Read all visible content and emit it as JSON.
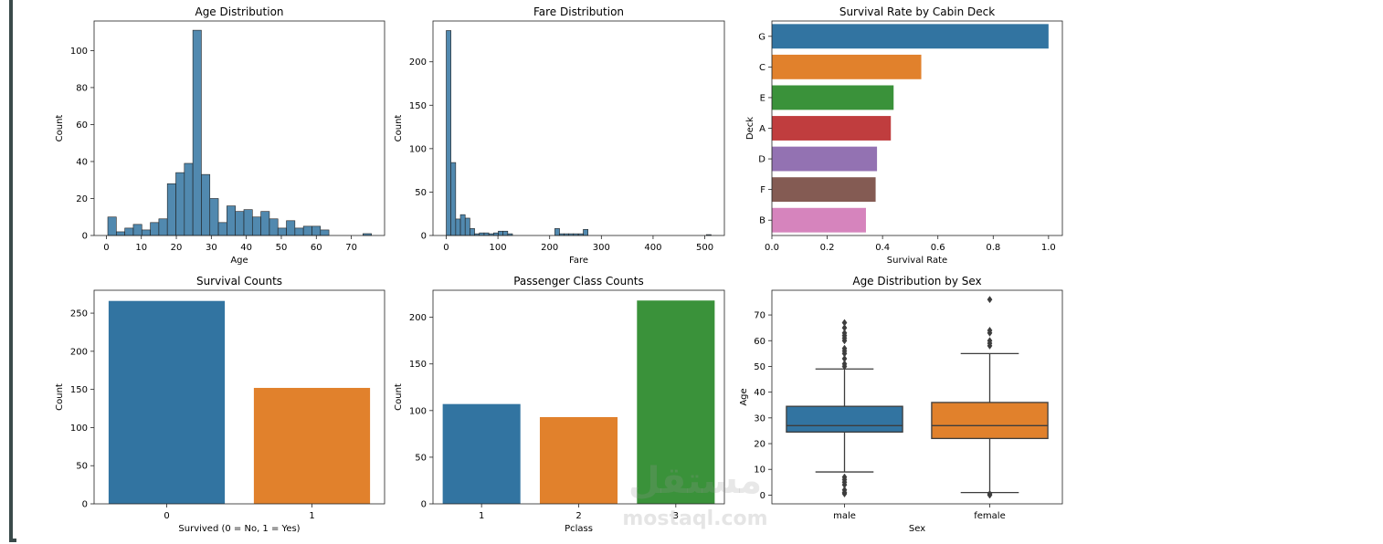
{
  "figure": {
    "watermark": {
      "arabic": "مستقل",
      "latin": "mostaql.com"
    }
  },
  "chart_data": [
    {
      "id": "age",
      "type": "bar",
      "subtype": "histogram",
      "title": "Age Distribution",
      "xlabel": "Age",
      "ylabel": "Count",
      "xlim": [
        -3.5,
        79.5
      ],
      "ylim": [
        0,
        116
      ],
      "xticks": [
        0,
        10,
        20,
        30,
        40,
        50,
        60,
        70
      ],
      "yticks": [
        0,
        20,
        40,
        60,
        80,
        100
      ],
      "bin_start": 0.42,
      "bin_width": 2.43,
      "values": [
        10,
        2,
        4,
        6,
        3,
        7,
        9,
        28,
        34,
        39,
        111,
        33,
        20,
        7,
        16,
        13,
        14,
        10,
        13,
        9,
        4,
        8,
        4,
        5,
        5,
        3,
        0,
        0,
        0,
        0,
        1
      ],
      "color": "#3274a1"
    },
    {
      "id": "fare",
      "type": "bar",
      "subtype": "histogram",
      "title": "Fare Distribution",
      "xlabel": "Fare",
      "ylabel": "Count",
      "xlim": [
        -25.6,
        537.9
      ],
      "ylim": [
        0,
        247
      ],
      "xticks": [
        0,
        100,
        200,
        300,
        400,
        500
      ],
      "yticks": [
        0,
        50,
        100,
        150,
        200
      ],
      "bin_start": 0,
      "bin_width": 9.15,
      "values": [
        236,
        84,
        19,
        24,
        20,
        8,
        2,
        3,
        3,
        2,
        3,
        5,
        5,
        2,
        0,
        0,
        0,
        0,
        0,
        0,
        0,
        0,
        0,
        0,
        0,
        0,
        0,
        0,
        0,
        0,
        0,
        0,
        0,
        0,
        0,
        0,
        0,
        0,
        0,
        0,
        0,
        0,
        0,
        0,
        0,
        0,
        0,
        0,
        0,
        0,
        0,
        0,
        0,
        0,
        0,
        0
      ],
      "extra_bars": [
        {
          "x": 210,
          "value": 8
        },
        {
          "x": 219,
          "value": 2
        },
        {
          "x": 228,
          "value": 2
        },
        {
          "x": 237,
          "value": 2
        },
        {
          "x": 246,
          "value": 2
        },
        {
          "x": 256,
          "value": 2
        },
        {
          "x": 265,
          "value": 7
        },
        {
          "x": 503,
          "value": 1
        }
      ],
      "color": "#3274a1"
    },
    {
      "id": "deck",
      "type": "bar",
      "orientation": "horizontal",
      "title": "Survival Rate by Cabin Deck",
      "xlabel": "Survival Rate",
      "ylabel": "Deck",
      "xlim": [
        0,
        1.05
      ],
      "xticks": [
        0.0,
        0.2,
        0.4,
        0.6,
        0.8,
        1.0
      ],
      "xticklabels": [
        "0.0",
        "0.2",
        "0.4",
        "0.6",
        "0.8",
        "1.0"
      ],
      "categories": [
        "G",
        "C",
        "E",
        "A",
        "D",
        "F",
        "B"
      ],
      "values": [
        1.0,
        0.54,
        0.44,
        0.43,
        0.38,
        0.375,
        0.34
      ],
      "colors": [
        "#3274a1",
        "#e1812c",
        "#3a923a",
        "#c03d3e",
        "#9372b2",
        "#845b53",
        "#d684bd"
      ]
    },
    {
      "id": "survived",
      "type": "bar",
      "title": "Survival Counts",
      "xlabel": "Survived (0 = No, 1 = Yes)",
      "ylabel": "Count",
      "ylim": [
        0,
        280
      ],
      "yticks": [
        0,
        50,
        100,
        150,
        200,
        250
      ],
      "categories": [
        "0",
        "1"
      ],
      "values": [
        266,
        152
      ],
      "colors": [
        "#3274a1",
        "#e1812c"
      ]
    },
    {
      "id": "pclass",
      "type": "bar",
      "title": "Passenger Class Counts",
      "xlabel": "Pclass",
      "ylabel": "Count",
      "ylim": [
        0,
        229
      ],
      "yticks": [
        0,
        50,
        100,
        150,
        200
      ],
      "categories": [
        "1",
        "2",
        "3"
      ],
      "values": [
        107,
        93,
        218
      ],
      "colors": [
        "#3274a1",
        "#e1812c",
        "#3a923a"
      ]
    },
    {
      "id": "agesex",
      "type": "box",
      "title": "Age Distribution by Sex",
      "xlabel": "Sex",
      "ylabel": "Age",
      "ylim": [
        -3.4,
        79.6
      ],
      "yticks": [
        0,
        10,
        20,
        30,
        40,
        50,
        60,
        70
      ],
      "categories": [
        "male",
        "female"
      ],
      "boxes": [
        {
          "whisker_low": 9,
          "q1": 24.5,
          "median": 27,
          "q3": 34.5,
          "whisker_high": 49,
          "outliers": [
            0.5,
            1,
            2,
            4,
            5,
            6,
            7,
            50,
            51,
            53,
            55,
            56,
            57,
            60,
            61,
            62,
            63,
            65,
            67
          ]
        },
        {
          "whisker_low": 1,
          "q1": 22,
          "median": 27,
          "q3": 36,
          "whisker_high": 55,
          "outliers": [
            0,
            0.5,
            58,
            59,
            60,
            63,
            64,
            76
          ]
        }
      ],
      "colors": [
        "#3274a1",
        "#e1812c"
      ]
    }
  ]
}
